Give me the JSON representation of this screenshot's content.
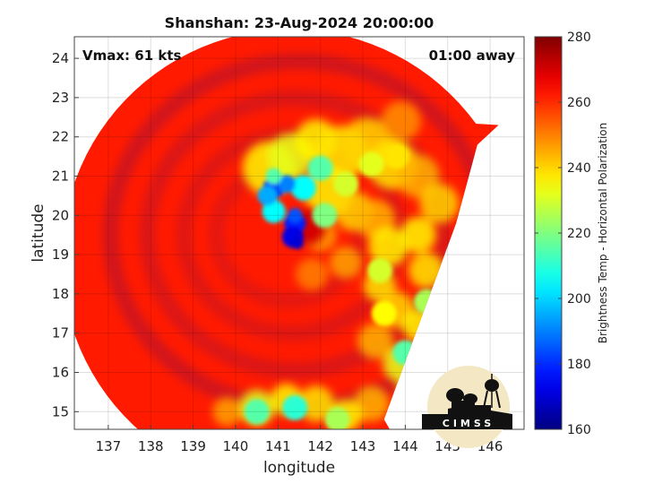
{
  "title": "Shanshan: 23-Aug-2024 20:00:00",
  "vmax_label": "Vmax: 61 kts",
  "time_label": "01:00 away",
  "axes": {
    "xlabel": "longitude",
    "ylabel": "latitude",
    "xlim": [
      136.2,
      146.8
    ],
    "ylim": [
      14.55,
      24.55
    ],
    "xticks": [
      137,
      138,
      139,
      140,
      141,
      142,
      143,
      144,
      145,
      146
    ],
    "yticks": [
      15,
      16,
      17,
      18,
      19,
      20,
      21,
      22,
      23,
      24
    ],
    "grid": true
  },
  "colorbar": {
    "label": "Brightness Temp - Horizontal Polarization",
    "min": 160,
    "max": 280,
    "ticks": [
      160,
      180,
      200,
      220,
      240,
      260,
      280
    ]
  },
  "logo": {
    "text": "CIMSS"
  },
  "chart_data": {
    "type": "heatmap",
    "title": "Shanshan: 23-Aug-2024 20:00:00",
    "xlabel": "longitude",
    "ylabel": "latitude",
    "xlim": [
      136.2,
      146.8
    ],
    "ylim": [
      14.55,
      24.55
    ],
    "colorbar_range": [
      160,
      280
    ],
    "colormap": "jet",
    "swath": {
      "center": [
        141.3,
        18.9
      ],
      "radius_deg": 5.4,
      "right_edge": [
        [
          143.5,
          14.8
        ],
        [
          145.2,
          19.8
        ],
        [
          145.7,
          21.8
        ],
        [
          146.2,
          22.3
        ]
      ]
    },
    "features": [
      {
        "name": "eye",
        "lon": 141.7,
        "lat": 19.7,
        "bt": 270
      },
      {
        "name": "eyewall convection",
        "points": [
          [
            140.9,
            20.7,
            180
          ],
          [
            141.4,
            19.8,
            178
          ],
          [
            141.35,
            19.45,
            172
          ],
          [
            141.6,
            20.7,
            205
          ],
          [
            142.0,
            21.2,
            215
          ],
          [
            142.1,
            20.0,
            220
          ],
          [
            142.6,
            20.8,
            230
          ],
          [
            143.2,
            21.3,
            232
          ],
          [
            143.8,
            21.5,
            238
          ]
        ]
      },
      {
        "name": "outer rainband",
        "points": [
          [
            143.4,
            18.6,
            230
          ],
          [
            143.5,
            17.5,
            235
          ],
          [
            144.0,
            16.5,
            215
          ],
          [
            144.4,
            16.2,
            190
          ],
          [
            144.5,
            17.8,
            225
          ],
          [
            145.3,
            19.0,
            200
          ],
          [
            140.5,
            15.0,
            215
          ],
          [
            141.4,
            15.1,
            210
          ],
          [
            142.4,
            14.8,
            225
          ]
        ]
      },
      {
        "name": "cold background",
        "bt": 262
      }
    ]
  }
}
